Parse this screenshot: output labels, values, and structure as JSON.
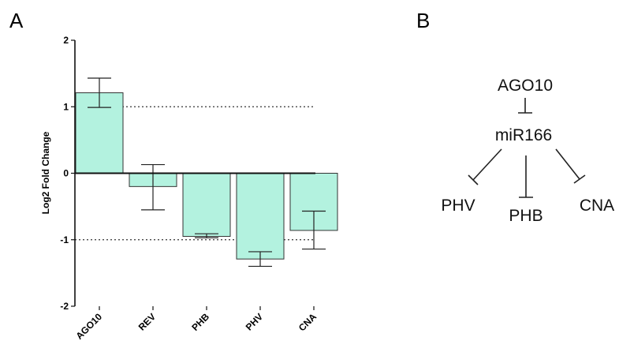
{
  "panels": {
    "a_label": "A",
    "b_label": "B"
  },
  "chart_data": {
    "type": "bar",
    "categories": [
      "AGO10",
      "REV",
      "PHB",
      "PHV",
      "CNA"
    ],
    "values": [
      1.21,
      -0.2,
      -0.95,
      -1.29,
      -0.86
    ],
    "error_bars": [
      {
        "low": 0.99,
        "high": 1.43
      },
      {
        "low": -0.55,
        "high": 0.13
      },
      {
        "low": -0.97,
        "high": -0.91
      },
      {
        "low": -1.4,
        "high": -1.18
      },
      {
        "low": -1.14,
        "high": -0.57
      }
    ],
    "ylabel": "Log2 Fold Change",
    "ylim": [
      -2,
      2
    ],
    "yticks": [
      "-2",
      "-1",
      "0",
      "1",
      "2"
    ],
    "reference_lines": [
      1,
      -1
    ],
    "bar_color": "#b3f2df",
    "grid": false
  },
  "diagram": {
    "nodes": {
      "ago10": "AGO10",
      "mir166": "miR166",
      "phv": "PHV",
      "phb": "PHB",
      "cna": "CNA"
    }
  }
}
